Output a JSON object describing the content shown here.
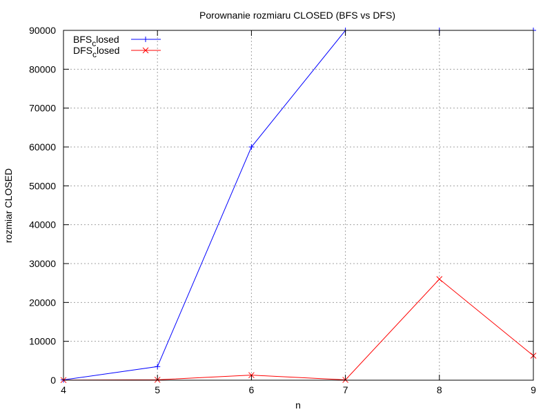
{
  "chart_data": {
    "type": "line",
    "title": "Porownanie rozmiaru CLOSED (BFS vs DFS)",
    "xlabel": "n",
    "ylabel": "rozmiar CLOSED",
    "xlim": [
      4,
      9
    ],
    "ylim": [
      0,
      90000
    ],
    "x_ticks": [
      4,
      5,
      6,
      7,
      8,
      9
    ],
    "y_ticks": [
      0,
      10000,
      20000,
      30000,
      40000,
      50000,
      60000,
      70000,
      80000,
      90000
    ],
    "grid": true,
    "legend_position": "top-left",
    "series": [
      {
        "name": "BFSclosed",
        "legend_main": "BFS",
        "legend_sub": "c",
        "legend_rest": "losed",
        "color": "#0000ff",
        "marker": "plus",
        "x": [
          4,
          5,
          6,
          7,
          8,
          9
        ],
        "values": [
          80,
          3500,
          60000,
          90000,
          90000,
          90000
        ]
      },
      {
        "name": "DFSclosed",
        "legend_main": "DFS",
        "legend_sub": "c",
        "legend_rest": "losed",
        "color": "#ff0000",
        "marker": "cross",
        "x": [
          4,
          5,
          6,
          7,
          8,
          9
        ],
        "values": [
          30,
          100,
          1300,
          80,
          26000,
          6300
        ]
      }
    ]
  }
}
